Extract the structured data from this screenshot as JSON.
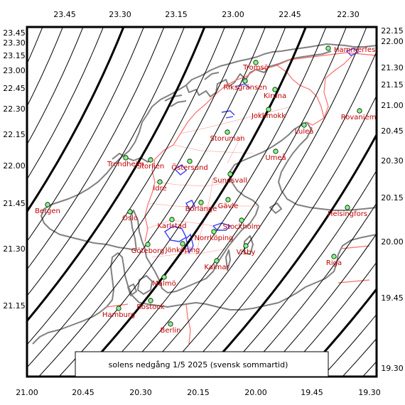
{
  "caption": "solens nedgång   1/5 2025   (svensk sommartid)",
  "colors": {
    "coast": "#808080",
    "border": "#ff6a6a",
    "lake": "#3a3aff",
    "isoline": "#000000",
    "city_fill": "#80ff80",
    "city_label": "#c00000",
    "frame": "#000000"
  },
  "ticks": {
    "top": [
      "23.45",
      "23.30",
      "23.15",
      "23.00",
      "22.45",
      "22.30"
    ],
    "left": [
      "23.45",
      "23.30",
      "23.15",
      "23.00",
      "22.45",
      "22.30",
      "22.15",
      "22.00",
      "21.45",
      "21.30",
      "21.15"
    ],
    "right": [
      "22.15",
      "22.00",
      "21.30",
      "21.15",
      "21.00",
      "20.45",
      "20.30",
      "20.15",
      "20.00",
      "19.45",
      "19.30"
    ],
    "bottom": [
      "21.00",
      "20.45",
      "20.30",
      "20.15",
      "20.00",
      "19.45",
      "19.30"
    ]
  },
  "cities": [
    {
      "name": "Hammerfest",
      "icon": "city-marker-icon"
    },
    {
      "name": "Tromsö",
      "icon": "city-marker-icon"
    },
    {
      "name": "Riksgränsen",
      "icon": "city-marker-icon"
    },
    {
      "name": "Kiruna",
      "icon": "city-marker-icon"
    },
    {
      "name": "Jokkmokk",
      "icon": "city-marker-icon"
    },
    {
      "name": "Rovaniemi",
      "icon": "city-marker-icon"
    },
    {
      "name": "Luleå",
      "icon": "city-marker-icon"
    },
    {
      "name": "Storuman",
      "icon": "city-marker-icon"
    },
    {
      "name": "Umeå",
      "icon": "city-marker-icon"
    },
    {
      "name": "Trondheim",
      "icon": "city-marker-icon"
    },
    {
      "name": "Storlien",
      "icon": "city-marker-icon"
    },
    {
      "name": "Östersund",
      "icon": "city-marker-icon"
    },
    {
      "name": "Sundsvall",
      "icon": "city-marker-icon"
    },
    {
      "name": "Idre",
      "icon": "city-marker-icon"
    },
    {
      "name": "Bergen",
      "icon": "city-marker-icon"
    },
    {
      "name": "Oslo",
      "icon": "city-marker-icon"
    },
    {
      "name": "Borlänge",
      "icon": "city-marker-icon"
    },
    {
      "name": "Gävle",
      "icon": "city-marker-icon"
    },
    {
      "name": "Helsingfors",
      "icon": "city-marker-icon"
    },
    {
      "name": "Karlstad",
      "icon": "city-marker-icon"
    },
    {
      "name": "Stockholm",
      "icon": "city-marker-icon"
    },
    {
      "name": "Norrköping",
      "icon": "city-marker-icon"
    },
    {
      "name": "Göteborg",
      "icon": "city-marker-icon"
    },
    {
      "name": "Jönköping",
      "icon": "city-marker-icon"
    },
    {
      "name": "Visby",
      "icon": "city-marker-icon"
    },
    {
      "name": "Riga",
      "icon": "city-marker-icon"
    },
    {
      "name": "Kalmar",
      "icon": "city-marker-icon"
    },
    {
      "name": "Malmö",
      "icon": "city-marker-icon"
    },
    {
      "name": "Rostock",
      "icon": "city-marker-icon"
    },
    {
      "name": "Hamburg",
      "icon": "city-marker-icon"
    },
    {
      "name": "Berlin",
      "icon": "city-marker-icon"
    }
  ]
}
